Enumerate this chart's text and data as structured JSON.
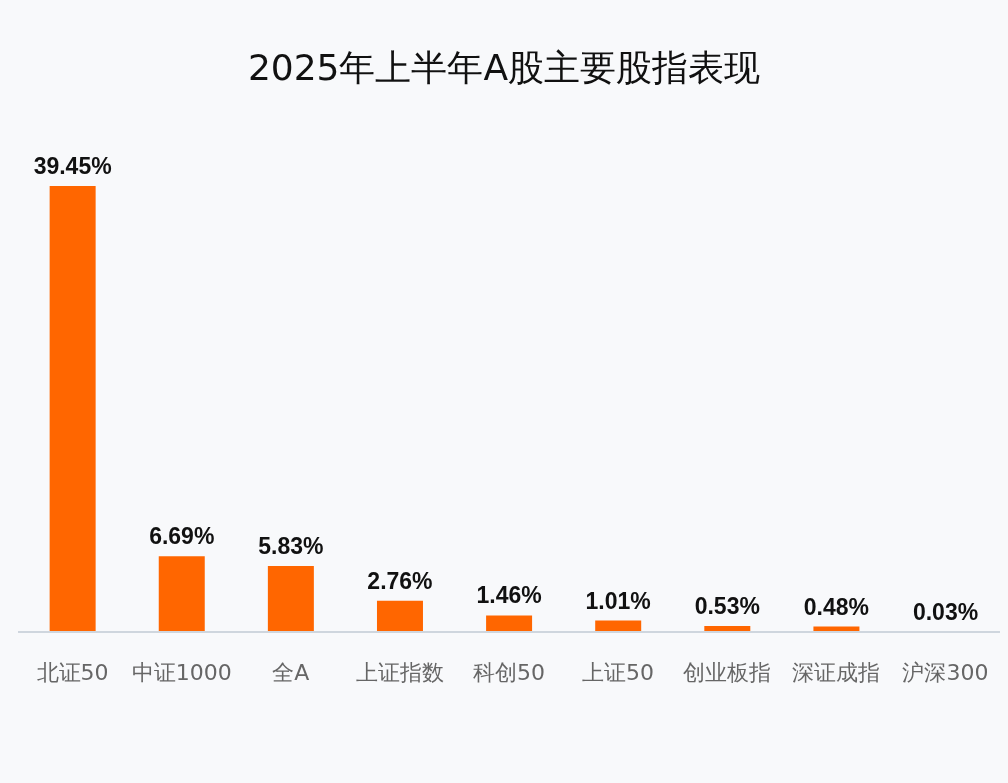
{
  "chart_data": {
    "type": "bar",
    "title": "2025年上半年A股主要股指表现",
    "categories": [
      "北证50",
      "中证1000",
      "全A",
      "上证指数",
      "科创50",
      "上证50",
      "创业板指",
      "深证成指",
      "沪深300"
    ],
    "values": [
      39.45,
      6.69,
      5.83,
      2.76,
      1.46,
      1.01,
      0.53,
      0.48,
      0.03
    ],
    "value_labels": [
      "39.45%",
      "6.69%",
      "5.83%",
      "2.76%",
      "1.46%",
      "1.01%",
      "0.53%",
      "0.48%",
      "0.03%"
    ],
    "color": "#ff6600"
  }
}
